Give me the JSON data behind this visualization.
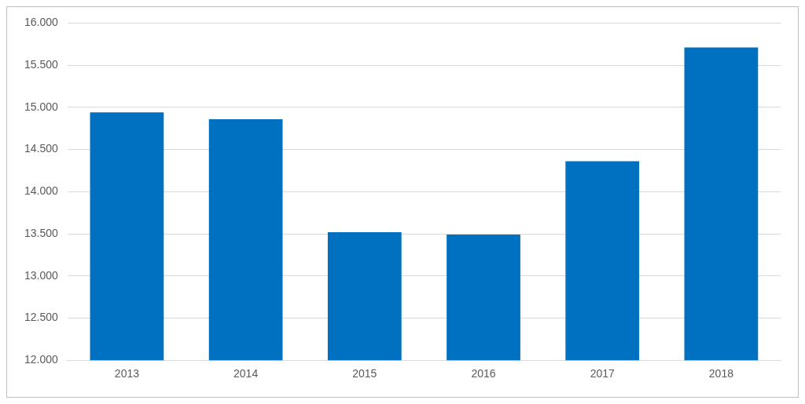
{
  "chart_data": {
    "type": "bar",
    "categories": [
      "2013",
      "2014",
      "2015",
      "2016",
      "2017",
      "2018"
    ],
    "values": [
      14940,
      14860,
      13520,
      13490,
      14360,
      15710
    ],
    "color": "#0070c0",
    "ylim": [
      12000,
      16000
    ],
    "yticks": [
      {
        "value": 12000,
        "label": "12.000"
      },
      {
        "value": 12500,
        "label": "12.500"
      },
      {
        "value": 13000,
        "label": "13.000"
      },
      {
        "value": 13500,
        "label": "13.500"
      },
      {
        "value": 14000,
        "label": "14.000"
      },
      {
        "value": 14500,
        "label": "14.500"
      },
      {
        "value": 15000,
        "label": "15.000"
      },
      {
        "value": 15500,
        "label": "15.500"
      },
      {
        "value": 16000,
        "label": "16.000"
      }
    ],
    "grid": "y",
    "legend": false
  }
}
